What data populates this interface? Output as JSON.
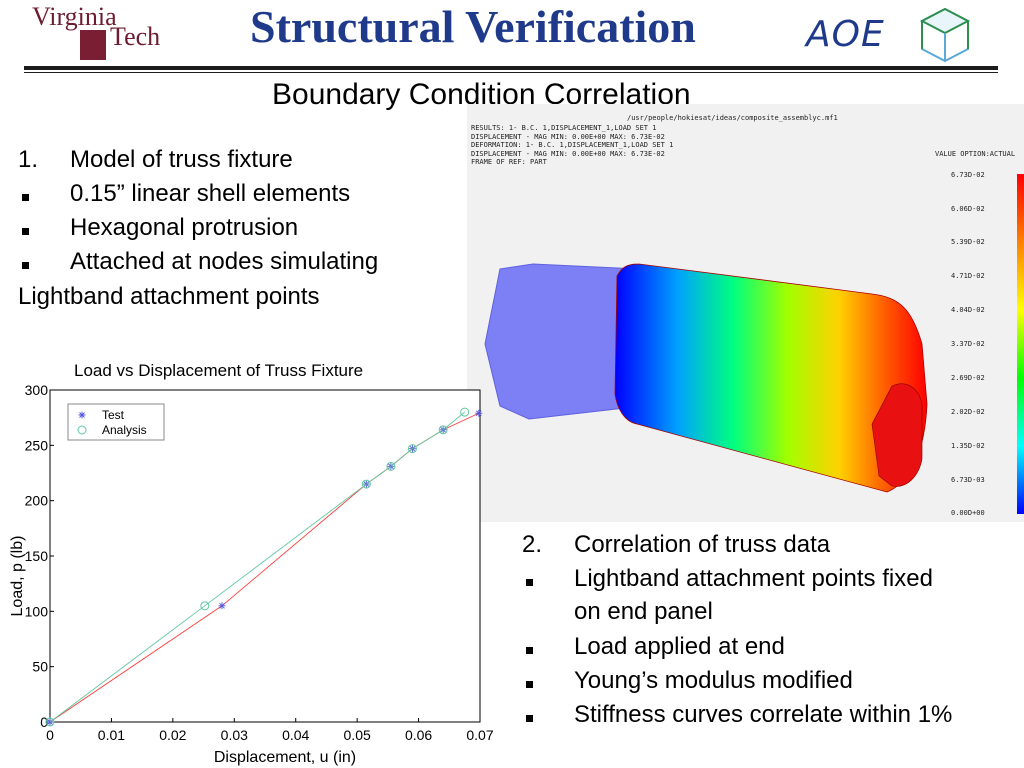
{
  "header": {
    "logo_line1": "Virginia",
    "logo_line2": "Tech",
    "title": "Structural Verification",
    "aoe": "AOE",
    "colors": {
      "title": "#1f3a8a",
      "vt_maroon": "#6b1d2f"
    }
  },
  "subtitle": "Boundary Condition Correlation",
  "left_list": [
    {
      "marker": "1.",
      "text": "Model of truss fixture"
    },
    {
      "marker": "square",
      "text": "0.15” linear shell elements"
    },
    {
      "marker": "square",
      "text": "Hexagonal protrusion"
    },
    {
      "marker": "square",
      "text": "Attached at nodes simulating"
    },
    {
      "marker": "",
      "text": "Lightband attachment points"
    }
  ],
  "right_list": [
    {
      "marker": "2.",
      "text": "Correlation of truss data"
    },
    {
      "marker": "square",
      "text": "Lightband attachment points fixed"
    },
    {
      "marker": "",
      "text": "on end panel"
    },
    {
      "marker": "square",
      "text": "Load applied at end"
    },
    {
      "marker": "square",
      "text": "Young’s modulus modified"
    },
    {
      "marker": "square",
      "text": "Stiffness curves correlate within 1%"
    }
  ],
  "fea": {
    "path": "/usr/people/hokiesat/ideas/composite_assemblyc.mf1",
    "info": "RESULTS: 1- B.C. 1,DISPLACEMENT_1,LOAD SET 1\nDISPLACEMENT - MAG MIN: 0.00E+00 MAX: 6.73E-02\nDEFORMATION: 1- B.C. 1,DISPLACEMENT_1,LOAD SET 1\nDISPLACEMENT - MAG MIN: 0.00E+00 MAX: 6.73E-02\nFRAME OF REF: PART",
    "value_option": "VALUE OPTION:ACTUAL",
    "scale": [
      "6.73D-02",
      "6.06D-02",
      "5.39D-02",
      "4.71D-02",
      "4.04D-02",
      "3.37D-02",
      "2.69D-02",
      "2.02D-02",
      "1.35D-02",
      "6.73D-03",
      "0.00D+00"
    ]
  },
  "chart_data": {
    "type": "scatter",
    "title": "Load vs Displacement of Truss Fixture",
    "xlabel": "Displacement, u (in)",
    "ylabel": "Load, p (lb)",
    "xlim": [
      0,
      0.07
    ],
    "ylim": [
      0,
      300
    ],
    "xticks": [
      "0",
      "0.01",
      "0.02",
      "0.03",
      "0.04",
      "0.05",
      "0.06",
      "0.07"
    ],
    "yticks": [
      "0",
      "50",
      "100",
      "150",
      "200",
      "250",
      "300"
    ],
    "legend": "top-left",
    "series": [
      {
        "name": "Test",
        "marker": "star",
        "color": "#ff3b3b",
        "points": [
          [
            0,
            0
          ],
          [
            0.028,
            105
          ],
          [
            0.0515,
            215
          ],
          [
            0.0555,
            231
          ],
          [
            0.059,
            247
          ],
          [
            0.064,
            264
          ],
          [
            0.0698,
            279
          ]
        ]
      },
      {
        "name": "Analysis",
        "marker": "circle",
        "color": "#5fc9a0",
        "points": [
          [
            0,
            0
          ],
          [
            0.0252,
            105
          ],
          [
            0.0515,
            215
          ],
          [
            0.0555,
            231
          ],
          [
            0.059,
            247
          ],
          [
            0.064,
            264
          ],
          [
            0.0675,
            280
          ]
        ]
      }
    ]
  }
}
